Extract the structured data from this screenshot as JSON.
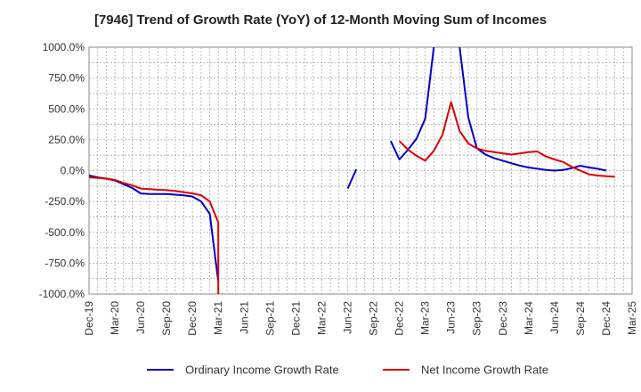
{
  "chart_data": {
    "type": "line",
    "title": "[7946]  Trend of Growth Rate (YoY) of 12-Month Moving Sum of Incomes",
    "x_ticks": [
      "Dec-19",
      "Mar-20",
      "Jun-20",
      "Sep-20",
      "Dec-20",
      "Mar-21",
      "Jun-21",
      "Sep-21",
      "Dec-21",
      "Mar-22",
      "Jun-22",
      "Sep-22",
      "Dec-22",
      "Mar-23",
      "Jun-23",
      "Sep-23",
      "Dec-23",
      "Mar-24",
      "Jun-24",
      "Sep-24",
      "Dec-24",
      "Mar-25"
    ],
    "y_ticks": [
      "1000.0%",
      "750.0%",
      "500.0%",
      "250.0%",
      "0.0%",
      "-250.0%",
      "-500.0%",
      "-750.0%",
      "-1000.0%"
    ],
    "ylim": [
      -1000,
      1000
    ],
    "grid": true,
    "legend_position": "bottom",
    "series": [
      {
        "name": "Ordinary Income Growth Rate",
        "color": "#0000cc",
        "points": [
          [
            "Dec-19",
            -40
          ],
          [
            "Jan-20",
            -55
          ],
          [
            "Feb-20",
            -65
          ],
          [
            "Mar-20",
            -80
          ],
          [
            "Apr-20",
            -110
          ],
          [
            "May-20",
            -140
          ],
          [
            "Jun-20",
            -185
          ],
          [
            "Jul-20",
            -190
          ],
          [
            "Aug-20",
            -190
          ],
          [
            "Sep-20",
            -190
          ],
          [
            "Oct-20",
            -195
          ],
          [
            "Nov-20",
            -200
          ],
          [
            "Dec-20",
            -210
          ],
          [
            "Jan-21",
            -250
          ],
          [
            "Feb-21",
            -350
          ],
          [
            "Mar-21",
            -900
          ],
          null,
          [
            "Jun-22",
            -145
          ],
          [
            "Jul-22",
            10
          ],
          null,
          [
            "Nov-22",
            240
          ],
          [
            "Dec-22",
            90
          ],
          [
            "Jan-23",
            170
          ],
          [
            "Feb-23",
            260
          ],
          [
            "Mar-23",
            420
          ],
          [
            "Apr-23",
            1000
          ],
          null,
          [
            "Jul-23",
            1000
          ],
          [
            "Aug-23",
            430
          ],
          [
            "Sep-23",
            180
          ],
          [
            "Oct-23",
            130
          ],
          [
            "Nov-23",
            100
          ],
          [
            "Dec-23",
            80
          ],
          [
            "Jan-24",
            60
          ],
          [
            "Feb-24",
            40
          ],
          [
            "Mar-24",
            25
          ],
          [
            "Apr-24",
            15
          ],
          [
            "May-24",
            5
          ],
          [
            "Jun-24",
            0
          ],
          [
            "Jul-24",
            5
          ],
          [
            "Aug-24",
            20
          ],
          [
            "Sep-24",
            40
          ],
          [
            "Oct-24",
            25
          ],
          [
            "Nov-24",
            15
          ],
          [
            "Dec-24",
            0
          ]
        ]
      },
      {
        "name": "Net Income Growth Rate",
        "color": "#dd0000",
        "points": [
          [
            "Dec-19",
            -55
          ],
          [
            "Jan-20",
            -60
          ],
          [
            "Feb-20",
            -65
          ],
          [
            "Mar-20",
            -75
          ],
          [
            "Apr-20",
            -100
          ],
          [
            "May-20",
            -120
          ],
          [
            "Jun-20",
            -145
          ],
          [
            "Jul-20",
            -150
          ],
          [
            "Aug-20",
            -155
          ],
          [
            "Sep-20",
            -158
          ],
          [
            "Oct-20",
            -165
          ],
          [
            "Nov-20",
            -175
          ],
          [
            "Dec-20",
            -185
          ],
          [
            "Jan-21",
            -200
          ],
          [
            "Feb-21",
            -250
          ],
          [
            "Mar-21",
            -420
          ],
          [
            "Mar-21",
            -1000
          ],
          null,
          [
            "Dec-22",
            240
          ],
          [
            "Jan-23",
            170
          ],
          [
            "Feb-23",
            120
          ],
          [
            "Mar-23",
            80
          ],
          [
            "Apr-23",
            160
          ],
          [
            "May-23",
            290
          ],
          [
            "Jun-23",
            555
          ],
          [
            "Jul-23",
            320
          ],
          [
            "Aug-23",
            220
          ],
          [
            "Sep-23",
            180
          ],
          [
            "Oct-23",
            160
          ],
          [
            "Nov-23",
            150
          ],
          [
            "Dec-23",
            140
          ],
          [
            "Jan-24",
            130
          ],
          [
            "Feb-24",
            140
          ],
          [
            "Mar-24",
            150
          ],
          [
            "Apr-24",
            155
          ],
          [
            "May-24",
            115
          ],
          [
            "Jun-24",
            90
          ],
          [
            "Jul-24",
            70
          ],
          [
            "Aug-24",
            30
          ],
          [
            "Sep-24",
            0
          ],
          [
            "Oct-24",
            -30
          ],
          [
            "Nov-24",
            -40
          ],
          [
            "Dec-24",
            -45
          ],
          [
            "Jan-25",
            -50
          ]
        ]
      }
    ]
  }
}
